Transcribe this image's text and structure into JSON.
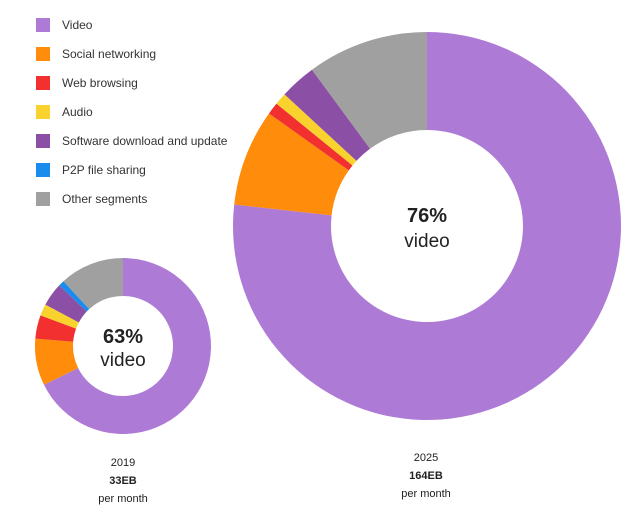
{
  "chart_data": {
    "type": "pie",
    "legend": [
      {
        "label": "Video",
        "color": "#ad7ad6"
      },
      {
        "label": "Social networking",
        "color": "#ff8c0a"
      },
      {
        "label": "Web browsing",
        "color": "#f2302f"
      },
      {
        "label": "Audio",
        "color": "#fad22d"
      },
      {
        "label": "Software download and update",
        "color": "#8c4fa6"
      },
      {
        "label": "P2P file sharing",
        "color": "#1a8ced"
      },
      {
        "label": "Other segments",
        "color": "#a0a0a0"
      }
    ],
    "charts": [
      {
        "year": "2019",
        "total": "33EB",
        "unit": "per month",
        "center_pct": "63%",
        "center_word": "video",
        "slices": [
          {
            "label": "Video",
            "value": 63
          },
          {
            "label": "Social networking",
            "value": 8
          },
          {
            "label": "Web browsing",
            "value": 4
          },
          {
            "label": "Audio",
            "value": 2
          },
          {
            "label": "Software download and update",
            "value": 4
          },
          {
            "label": "P2P file sharing",
            "value": 1
          },
          {
            "label": "Other segments",
            "value": 11
          }
        ]
      },
      {
        "year": "2025",
        "total": "164EB",
        "unit": "per month",
        "center_pct": "76%",
        "center_word": "video",
        "slices": [
          {
            "label": "Video",
            "value": 76
          },
          {
            "label": "Social networking",
            "value": 8
          },
          {
            "label": "Web browsing",
            "value": 1
          },
          {
            "label": "Audio",
            "value": 1
          },
          {
            "label": "Software download and update",
            "value": 3
          },
          {
            "label": "P2P file sharing",
            "value": 0
          },
          {
            "label": "Other segments",
            "value": 10
          }
        ]
      }
    ]
  }
}
